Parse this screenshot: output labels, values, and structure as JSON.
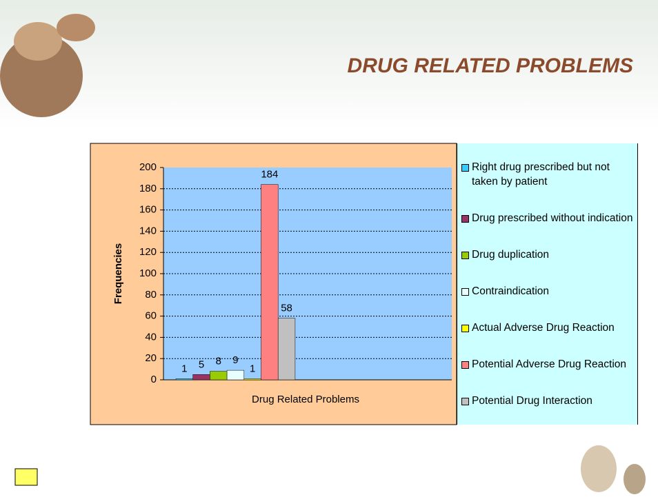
{
  "chart_data": {
    "type": "bar",
    "title": "DRUG RELATED PROBLEMS",
    "xlabel": "Drug Related Problems",
    "ylabel": "Frequencies",
    "categories": [
      "Drug Related Problems"
    ],
    "series": [
      {
        "name": "Right drug prescribed but not taken by patient",
        "color": "#33ccff",
        "values": [
          1
        ]
      },
      {
        "name": "Drug prescribed without indication",
        "color": "#993366",
        "values": [
          5
        ]
      },
      {
        "name": "Drug duplication",
        "color": "#99cc00",
        "values": [
          8
        ]
      },
      {
        "name": "Contraindication",
        "color": "#e8ffff",
        "values": [
          9
        ]
      },
      {
        "name": "Actual Adverse Drug Reaction",
        "color": "#ffff00",
        "values": [
          1
        ]
      },
      {
        "name": "Potential Adverse Drug Reaction",
        "color": "#ff8080",
        "values": [
          184
        ]
      },
      {
        "name": "Potential Drug Interaction",
        "color": "#c0c0c0",
        "values": [
          58
        ]
      }
    ],
    "ylim": [
      0,
      200
    ],
    "yticks": [
      0,
      20,
      40,
      60,
      80,
      100,
      120,
      140,
      160,
      180,
      200
    ],
    "grid": true,
    "legend": "right"
  }
}
